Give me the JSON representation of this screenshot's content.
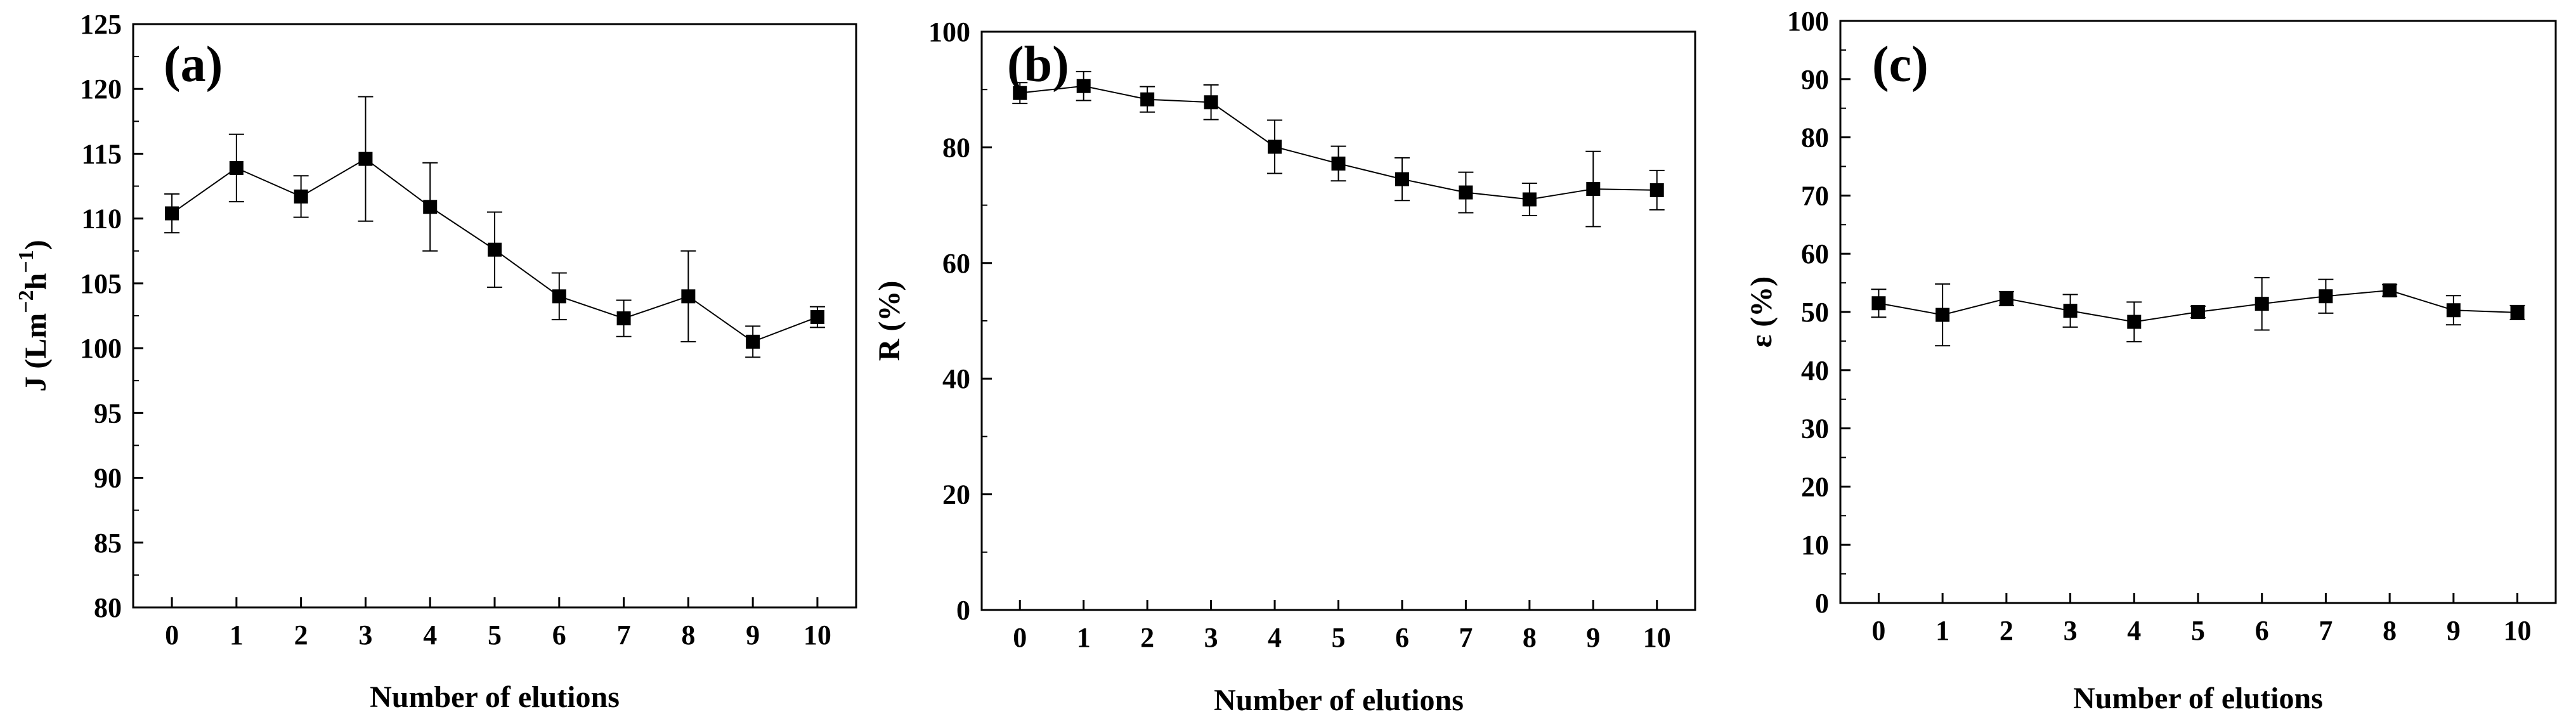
{
  "chart_data": [
    {
      "type": "line",
      "panel_label": "(a)",
      "title": "",
      "xlabel": "Number of elutions",
      "ylabel_main": "J (Lm",
      "ylabel_sup1": "−2",
      "ylabel_mid": "h",
      "ylabel_sup2": "−1",
      "ylabel_end": ")",
      "xlim": [
        -0.6,
        10.6
      ],
      "ylim": [
        80,
        125
      ],
      "x_ticks": [
        0,
        1,
        2,
        3,
        4,
        5,
        6,
        7,
        8,
        9,
        10
      ],
      "y_ticks": [
        80,
        85,
        90,
        95,
        100,
        105,
        110,
        115,
        120,
        125
      ],
      "grid": false,
      "series": [
        {
          "x": [
            0,
            1,
            2,
            3,
            4,
            5,
            6,
            7,
            8,
            9,
            10
          ],
          "values": [
            110.4,
            113.9,
            111.7,
            114.6,
            110.9,
            107.6,
            104.0,
            102.3,
            104.0,
            100.5,
            102.4
          ],
          "error": [
            1.5,
            2.6,
            1.6,
            4.8,
            3.4,
            2.9,
            1.8,
            1.4,
            3.5,
            1.2,
            0.8
          ]
        }
      ]
    },
    {
      "type": "line",
      "panel_label": "(b)",
      "title": "",
      "xlabel": "Number of elutions",
      "ylabel": "R (%)",
      "xlim": [
        -0.6,
        10.6
      ],
      "ylim": [
        0,
        100
      ],
      "x_ticks": [
        0,
        1,
        2,
        3,
        4,
        5,
        6,
        7,
        8,
        9,
        10
      ],
      "y_ticks": [
        0,
        20,
        40,
        60,
        80,
        100
      ],
      "grid": false,
      "series": [
        {
          "x": [
            0,
            1,
            2,
            3,
            4,
            5,
            6,
            7,
            8,
            9,
            10
          ],
          "values": [
            89.4,
            90.6,
            88.3,
            87.8,
            80.1,
            77.2,
            74.5,
            72.2,
            71.0,
            72.8,
            72.6
          ],
          "error": [
            1.8,
            2.5,
            2.2,
            3.0,
            4.6,
            3.0,
            3.7,
            3.5,
            2.8,
            6.5,
            3.4
          ]
        }
      ]
    },
    {
      "type": "line",
      "panel_label": "(c)",
      "title": "",
      "xlabel": "Number of elutions",
      "ylabel": "ε (%)",
      "xlim": [
        -0.6,
        10.6
      ],
      "ylim": [
        0,
        100
      ],
      "x_ticks": [
        0,
        1,
        2,
        3,
        4,
        5,
        6,
        7,
        8,
        9,
        10
      ],
      "y_ticks": [
        0,
        10,
        20,
        30,
        40,
        50,
        60,
        70,
        80,
        90,
        100
      ],
      "grid": false,
      "series": [
        {
          "x": [
            0,
            1,
            2,
            3,
            4,
            5,
            6,
            7,
            8,
            9,
            10
          ],
          "values": [
            51.5,
            49.5,
            52.3,
            50.2,
            48.3,
            50.0,
            51.4,
            52.7,
            53.7,
            50.3,
            49.9
          ],
          "error": [
            2.4,
            5.3,
            1.2,
            2.8,
            3.4,
            1.0,
            4.5,
            2.9,
            1.0,
            2.5,
            1.2
          ]
        }
      ]
    }
  ]
}
